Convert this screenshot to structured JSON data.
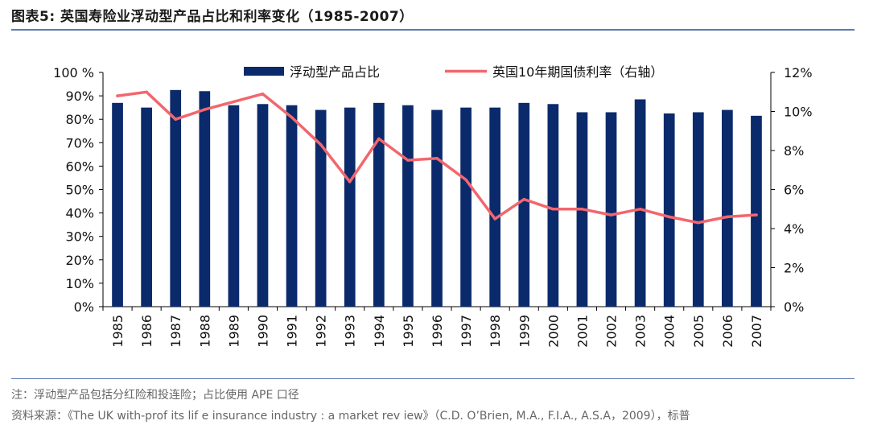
{
  "figure": {
    "title": "图表5:  英国寿险业浮动型产品占比和利率变化（1985-2007）",
    "note": "注：浮动型产品包括分红险和投连险；占比使用 APE 口径",
    "source": "资料来源：《The UK with-prof its lif e insurance industry : a market rev iew》（C.D. O’Brien, M.A., F.I.A., A.S.A，2009），标普"
  },
  "chart_data": {
    "type": "bar+line",
    "categories": [
      "1985",
      "1986",
      "1987",
      "1988",
      "1989",
      "1990",
      "1991",
      "1992",
      "1993",
      "1994",
      "1995",
      "1996",
      "1997",
      "1998",
      "1999",
      "2000",
      "2001",
      "2002",
      "2003",
      "2004",
      "2005",
      "2006",
      "2007"
    ],
    "series": [
      {
        "name": "浮动型产品占比",
        "type": "bar",
        "axis": "left",
        "color": "#0a2a6b",
        "values": [
          87,
          85,
          92.5,
          92,
          86,
          86.5,
          86,
          84,
          85,
          87,
          86,
          84,
          85,
          85,
          87,
          86.5,
          83,
          83,
          88.5,
          82.5,
          83,
          84,
          81.5
        ]
      },
      {
        "name": "英国10年期国债利率（右轴）",
        "type": "line",
        "axis": "right",
        "color": "#f2666d",
        "values": [
          10.8,
          11.0,
          9.6,
          10.1,
          10.5,
          10.9,
          9.7,
          8.3,
          6.4,
          8.6,
          7.5,
          7.6,
          6.5,
          4.5,
          5.5,
          5.0,
          5.0,
          4.7,
          5.0,
          4.6,
          4.3,
          4.6,
          4.7
        ]
      }
    ],
    "left_axis": {
      "ylim": [
        0,
        100
      ],
      "ticks": [
        "0%",
        "10%",
        "20%",
        "30%",
        "40%",
        "50%",
        "60%",
        "70%",
        "80%",
        "90%",
        "100 %"
      ]
    },
    "right_axis": {
      "ylim": [
        0,
        12
      ],
      "ticks": [
        "0%",
        "2%",
        "4%",
        "6%",
        "8%",
        "10%",
        "12%"
      ]
    },
    "grid": false,
    "legend": "top-center"
  }
}
